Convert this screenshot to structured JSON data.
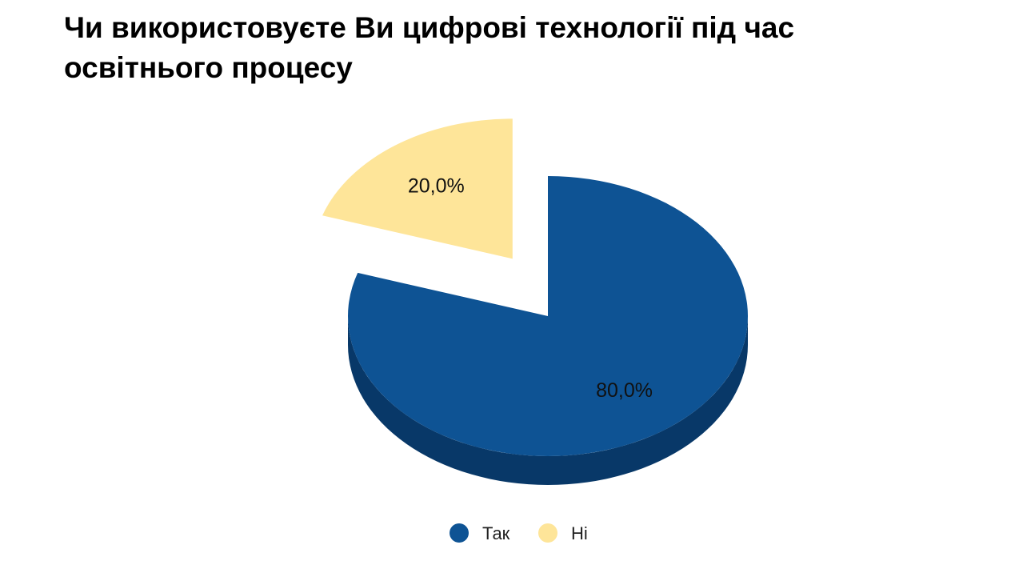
{
  "chart_data": {
    "type": "pie",
    "title": "Чи використовуєте Ви цифрові технології під час освітнього процесу",
    "categories": [
      "Так",
      "Ні"
    ],
    "values": [
      80.0,
      20.0
    ],
    "data_labels": [
      "80,0%",
      "20,0%"
    ],
    "colors": [
      "#0e5394",
      "#fee599"
    ],
    "side_colors": [
      "#083868",
      "#b4a06a"
    ],
    "exploded": [
      false,
      true
    ],
    "style": "3d",
    "legend_position": "bottom"
  }
}
